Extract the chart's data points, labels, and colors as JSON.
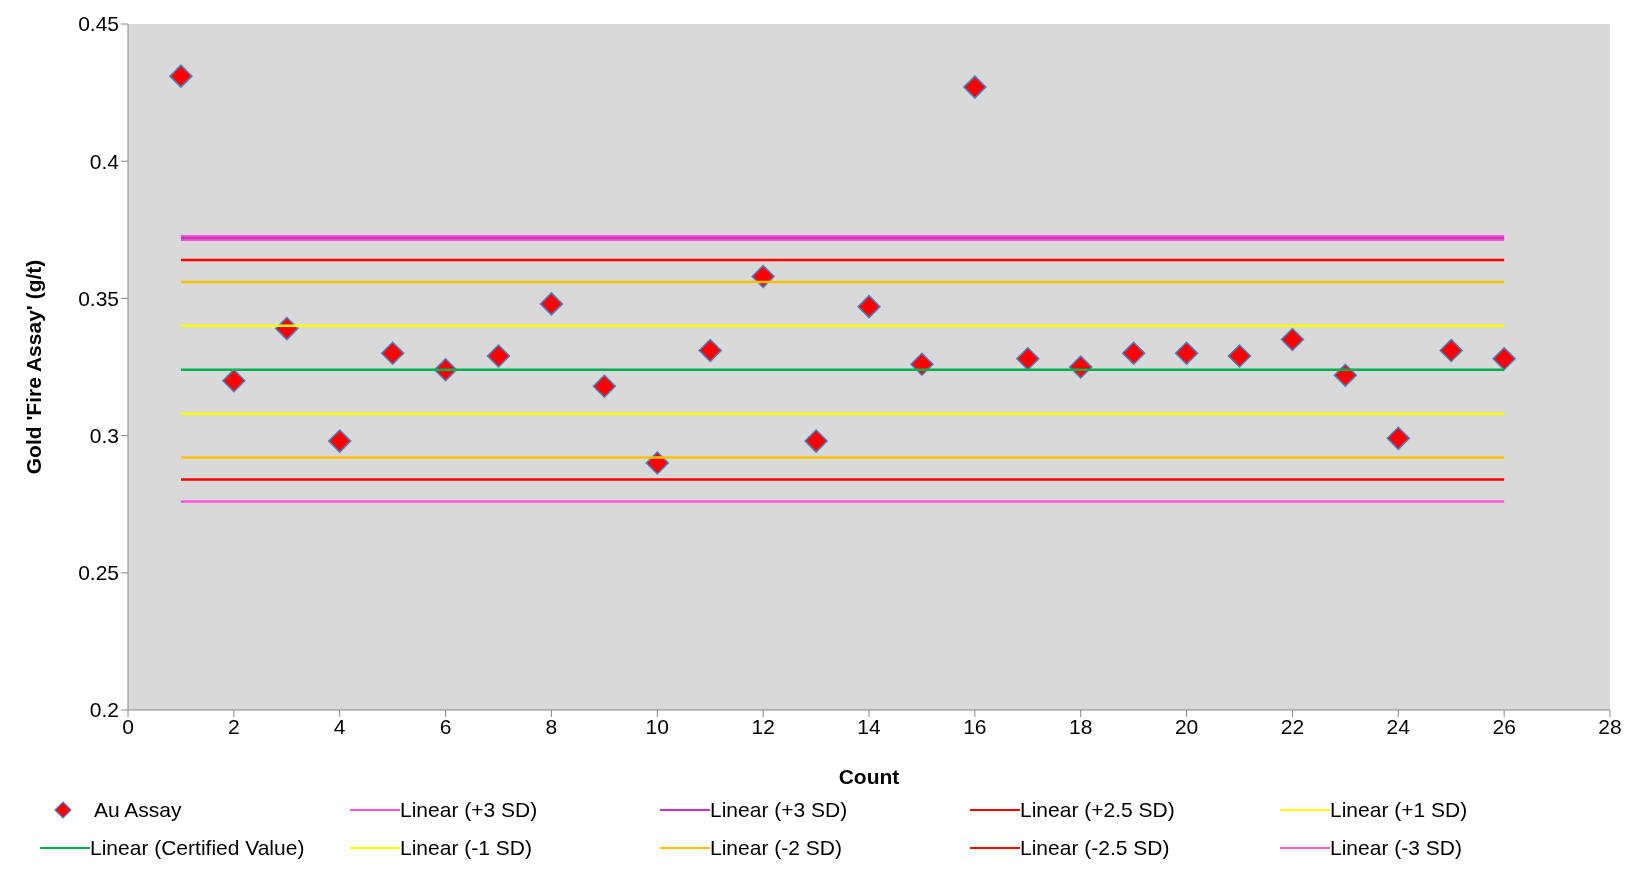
{
  "chart_data": {
    "type": "scatter",
    "xlabel": "Count",
    "ylabel": "Gold 'Fire Assay' (g/t)",
    "xlim": [
      0,
      28
    ],
    "xticks": [
      0,
      2,
      4,
      6,
      8,
      10,
      12,
      14,
      16,
      18,
      20,
      22,
      24,
      26,
      28
    ],
    "ylim": [
      0.2,
      0.45
    ],
    "yticks": [
      0.2,
      0.25,
      0.3,
      0.35,
      0.4,
      0.45
    ],
    "grid": false,
    "legend": "bottom",
    "x": [
      1,
      2,
      3,
      4,
      5,
      6,
      7,
      8,
      9,
      10,
      11,
      12,
      13,
      14,
      15,
      16,
      17,
      18,
      19,
      20,
      21,
      22,
      23,
      24,
      25,
      26
    ],
    "series": [
      {
        "name": "Au Assay",
        "marker": "diamond",
        "color": "#ff0000",
        "values": [
          0.431,
          0.32,
          0.339,
          0.298,
          0.33,
          0.324,
          0.329,
          0.348,
          0.318,
          0.29,
          0.331,
          0.358,
          0.298,
          0.347,
          0.326,
          0.427,
          0.328,
          0.325,
          0.33,
          0.33,
          0.329,
          0.335,
          0.322,
          0.299,
          0.331,
          0.328
        ]
      },
      {
        "name": "Linear (+3 SD)",
        "type": "line",
        "color": "#ff55dd",
        "values": [
          0.372,
          0.372,
          0.372,
          0.372,
          0.372,
          0.372,
          0.372,
          0.372,
          0.372,
          0.372,
          0.372,
          0.372,
          0.372,
          0.372,
          0.372,
          0.372,
          0.372,
          0.372,
          0.372,
          0.372,
          0.372,
          0.372,
          0.372,
          0.372,
          0.372,
          0.372
        ]
      },
      {
        "name": "Linear (+3 SD)",
        "type": "line",
        "color": "#cc33bb",
        "values": [
          0.372,
          0.372,
          0.372,
          0.372,
          0.372,
          0.372,
          0.372,
          0.372,
          0.372,
          0.372,
          0.372,
          0.372,
          0.372,
          0.372,
          0.372,
          0.372,
          0.372,
          0.372,
          0.372,
          0.372,
          0.372,
          0.372,
          0.372,
          0.372,
          0.372,
          0.372
        ]
      },
      {
        "name": "Linear (+2.5 SD)",
        "type": "line",
        "color": "#ff0000",
        "values": [
          0.364,
          0.364,
          0.364,
          0.364,
          0.364,
          0.364,
          0.364,
          0.364,
          0.364,
          0.364,
          0.364,
          0.364,
          0.364,
          0.364,
          0.364,
          0.364,
          0.364,
          0.364,
          0.364,
          0.364,
          0.364,
          0.364,
          0.364,
          0.364,
          0.364,
          0.364
        ]
      },
      {
        "type": "line",
        "color": "#ffc000",
        "values": [
          0.356,
          0.356,
          0.356,
          0.356,
          0.356,
          0.356,
          0.356,
          0.356,
          0.356,
          0.356,
          0.356,
          0.356,
          0.356,
          0.356,
          0.356,
          0.356,
          0.356,
          0.356,
          0.356,
          0.356,
          0.356,
          0.356,
          0.356,
          0.356,
          0.356,
          0.356
        ]
      },
      {
        "name": "Linear (+1 SD)",
        "type": "line",
        "color": "#ffff00",
        "values": [
          0.34,
          0.34,
          0.34,
          0.34,
          0.34,
          0.34,
          0.34,
          0.34,
          0.34,
          0.34,
          0.34,
          0.34,
          0.34,
          0.34,
          0.34,
          0.34,
          0.34,
          0.34,
          0.34,
          0.34,
          0.34,
          0.34,
          0.34,
          0.34,
          0.34,
          0.34
        ]
      },
      {
        "name": "Linear (Certified Value)",
        "type": "line",
        "color": "#00b050",
        "values": [
          0.324,
          0.324,
          0.324,
          0.324,
          0.324,
          0.324,
          0.324,
          0.324,
          0.324,
          0.324,
          0.324,
          0.324,
          0.324,
          0.324,
          0.324,
          0.324,
          0.324,
          0.324,
          0.324,
          0.324,
          0.324,
          0.324,
          0.324,
          0.324,
          0.324,
          0.324
        ]
      },
      {
        "name": "Linear (-1 SD)",
        "type": "line",
        "color": "#ffff00",
        "values": [
          0.308,
          0.308,
          0.308,
          0.308,
          0.308,
          0.308,
          0.308,
          0.308,
          0.308,
          0.308,
          0.308,
          0.308,
          0.308,
          0.308,
          0.308,
          0.308,
          0.308,
          0.308,
          0.308,
          0.308,
          0.308,
          0.308,
          0.308,
          0.308,
          0.308,
          0.308
        ]
      },
      {
        "name": "Linear (-2 SD)",
        "type": "line",
        "color": "#ffc000",
        "values": [
          0.292,
          0.292,
          0.292,
          0.292,
          0.292,
          0.292,
          0.292,
          0.292,
          0.292,
          0.292,
          0.292,
          0.292,
          0.292,
          0.292,
          0.292,
          0.292,
          0.292,
          0.292,
          0.292,
          0.292,
          0.292,
          0.292,
          0.292,
          0.292,
          0.292,
          0.292
        ]
      },
      {
        "name": "Linear (-2.5 SD)",
        "type": "line",
        "color": "#ff0000",
        "values": [
          0.284,
          0.284,
          0.284,
          0.284,
          0.284,
          0.284,
          0.284,
          0.284,
          0.284,
          0.284,
          0.284,
          0.284,
          0.284,
          0.284,
          0.284,
          0.284,
          0.284,
          0.284,
          0.284,
          0.284,
          0.284,
          0.284,
          0.284,
          0.284,
          0.284,
          0.284
        ]
      },
      {
        "name": "Linear (-3 SD)",
        "type": "line",
        "color": "#ff55dd",
        "values": [
          0.276,
          0.276,
          0.276,
          0.276,
          0.276,
          0.276,
          0.276,
          0.276,
          0.276,
          0.276,
          0.276,
          0.276,
          0.276,
          0.276,
          0.276,
          0.276,
          0.276,
          0.276,
          0.276,
          0.276,
          0.276,
          0.276,
          0.276,
          0.276,
          0.276,
          0.276
        ]
      }
    ]
  }
}
